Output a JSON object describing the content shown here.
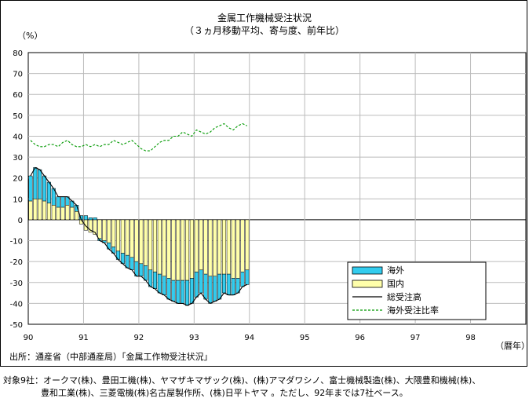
{
  "title": "金属工作機械受注状況",
  "subtitle": "（３ヵ月移動平均、寄与度、前年比）",
  "y_unit": "（%）",
  "x_unit": "（暦年）",
  "source": "出所：通産省（中部通産局）「金属工作物受注状況」",
  "note_line1": "対象9社：オークマ(株)、豊田工機(株)、ヤマザキマザック(株)、(株)アマダワシノ、富士機械製造(株)、大隈豊和機械(株)、",
  "note_line2": "豊和工業(株)、三菱電機(株)名古屋製作所、(株)日平トヤマ 。ただし、92年までは7社ベース。",
  "colors": {
    "overseas": "#33CCEE",
    "domestic": "#FFFFAA",
    "total": "#000000",
    "ratio": "#009900"
  },
  "chart_data": {
    "type": "bar",
    "stacked": true,
    "title": "金属工作機械受注状況",
    "subtitle": "（３ヵ月移動平均、寄与度、前年比）",
    "ylabel": "（%）",
    "xlabel": "（暦年）",
    "ylim": [
      -50,
      80
    ],
    "yticks": [
      -50,
      -40,
      -30,
      -20,
      -10,
      0,
      10,
      20,
      30,
      40,
      50,
      60,
      70,
      80
    ],
    "x_tick_labels": [
      "90",
      "91",
      "92",
      "93",
      "94",
      "95",
      "96",
      "97",
      "98"
    ],
    "x_start": "1990-01",
    "period": "monthly",
    "grid": true,
    "legend_position": "lower-right",
    "series": [
      {
        "name": "海外",
        "type": "bar",
        "values": [
          12,
          15,
          14,
          12,
          10,
          8,
          5,
          5,
          4,
          3,
          3,
          2,
          2,
          1,
          1,
          -1,
          -1,
          -3,
          -3,
          -4,
          -5,
          -6,
          -6,
          -7,
          -6,
          -7,
          -8,
          -8,
          -9,
          -9,
          -10,
          -10,
          -11,
          -11,
          -12,
          -12,
          -12,
          -11,
          -12,
          -13,
          -12,
          -12,
          -9,
          -10,
          -8,
          -7,
          -7,
          -7,
          null,
          null,
          null,
          null,
          null,
          null,
          null,
          null,
          null,
          null,
          null,
          null,
          null,
          null,
          null,
          null,
          null,
          null,
          null,
          null,
          null,
          null,
          null,
          null,
          null,
          null,
          null,
          null,
          null,
          null,
          null,
          null,
          null,
          null,
          null,
          null,
          null,
          null,
          null,
          null,
          null,
          null,
          null,
          null,
          null,
          null,
          null,
          null,
          null,
          null,
          null,
          null,
          null,
          null,
          null,
          null,
          null,
          null,
          null,
          null,
          null,
          null,
          null,
          null,
          null,
          null,
          null,
          null,
          null,
          null,
          null,
          null,
          null,
          null,
          null,
          null,
          null,
          null,
          null,
          null,
          null,
          null,
          null,
          null,
          null,
          null,
          null,
          null,
          null,
          null,
          null,
          null,
          null,
          null,
          null,
          null,
          null,
          null,
          null,
          null,
          null,
          null,
          null,
          null,
          null,
          null,
          null,
          null,
          null,
          null,
          null,
          null,
          null,
          null,
          null,
          null,
          null,
          null,
          null,
          null,
          null,
          null,
          null,
          null,
          null,
          null,
          null,
          null,
          null,
          null,
          null,
          null,
          null,
          null,
          null,
          null
        ]
      },
      {
        "name": "国内",
        "type": "bar",
        "values": [
          9,
          10,
          10,
          9,
          8,
          7,
          6,
          6,
          7,
          6,
          4,
          -2,
          -5,
          -6,
          -7,
          -9,
          -10,
          -11,
          -13,
          -15,
          -16,
          -17,
          -18,
          -20,
          -21,
          -22,
          -24,
          -25,
          -26,
          -27,
          -28,
          -29,
          -29,
          -29,
          -29,
          -28,
          -25,
          -24,
          -26,
          -27,
          -27,
          -26,
          -26,
          -26,
          -28,
          -28,
          -25,
          -24,
          null,
          null,
          null,
          null,
          null,
          null,
          null,
          null,
          null,
          null,
          null,
          null,
          null,
          null,
          null,
          null,
          null,
          null,
          null,
          null,
          null,
          null,
          null,
          null,
          null,
          null,
          null,
          null,
          null,
          null,
          null,
          null,
          null,
          null,
          null,
          null,
          null,
          null,
          null,
          null,
          null,
          null,
          null,
          null,
          null,
          null,
          null,
          null,
          null,
          null,
          null,
          null,
          null,
          null,
          null,
          null,
          null,
          null,
          null,
          null,
          null,
          null,
          null,
          null,
          null,
          null,
          null,
          null,
          null,
          null,
          null,
          null,
          null,
          null,
          null,
          null,
          null,
          null,
          null,
          null,
          null,
          null,
          null,
          null,
          null,
          null,
          null,
          null,
          null,
          null,
          null,
          null,
          null,
          null,
          null,
          null,
          null,
          null,
          null,
          null,
          null,
          null,
          null,
          null,
          null,
          null,
          null,
          null,
          null,
          null,
          null,
          null,
          null,
          null,
          null,
          null,
          null,
          null,
          null,
          null,
          null,
          null,
          null,
          null,
          null,
          null,
          null,
          null,
          null,
          null,
          null,
          null,
          null,
          null,
          null,
          null
        ]
      },
      {
        "name": "総受注高",
        "type": "line",
        "values": [
          21,
          25,
          24,
          21,
          18,
          15,
          11,
          11,
          11,
          9,
          7,
          0,
          -3,
          -5,
          -6,
          -10,
          -11,
          -14,
          -16,
          -19,
          -21,
          -23,
          -24,
          -27,
          -27,
          -29,
          -32,
          -33,
          -35,
          -36,
          -38,
          -39,
          -40,
          -40,
          -41,
          -40,
          -37,
          -35,
          -38,
          -40,
          -39,
          -38,
          -35,
          -36,
          -36,
          -35,
          -32,
          -31,
          null,
          null,
          null,
          null,
          null,
          null,
          null,
          null,
          null,
          null,
          null,
          null,
          null,
          null,
          null,
          null,
          null,
          null,
          null,
          null,
          null,
          null,
          null,
          null,
          null,
          null,
          null,
          null,
          null,
          null,
          null,
          null,
          null,
          null,
          null,
          null,
          null,
          null,
          null,
          null,
          null,
          null,
          null,
          null,
          null,
          null,
          null,
          null,
          null,
          null,
          null,
          null,
          null,
          null,
          null,
          null,
          null,
          null,
          null,
          null,
          null,
          null,
          null,
          null,
          null,
          null,
          null,
          null,
          null,
          null,
          null,
          null,
          null,
          null,
          null,
          null,
          null,
          null,
          null,
          null,
          null,
          null,
          null,
          null,
          null,
          null,
          null,
          null,
          null,
          null,
          null,
          null,
          null,
          null,
          null,
          null,
          null,
          null,
          null,
          null,
          null,
          null,
          null,
          null,
          null,
          null,
          null,
          null,
          null,
          null,
          null,
          null,
          null,
          null,
          null,
          null,
          null,
          null,
          null,
          null,
          null,
          null,
          null,
          null,
          null,
          null,
          null,
          null,
          null,
          null,
          null,
          null,
          null,
          null,
          null,
          null
        ]
      },
      {
        "name": "海外受注比率",
        "type": "line",
        "values": [
          38,
          36,
          35,
          35,
          36,
          36,
          35,
          37,
          38,
          36,
          35,
          35,
          36,
          35,
          36,
          35,
          36,
          36,
          38,
          37,
          36,
          37,
          38,
          36,
          34,
          33,
          33,
          35,
          37,
          38,
          38,
          40,
          40,
          42,
          41,
          40,
          43,
          42,
          41,
          42,
          44,
          45,
          46,
          44,
          43,
          45,
          46,
          45,
          null,
          null,
          null,
          null,
          null,
          null,
          null,
          null,
          null,
          null,
          null,
          null,
          null,
          null,
          null,
          null,
          null,
          null,
          null,
          null,
          null,
          null,
          null,
          null,
          null,
          null,
          null,
          null,
          null,
          null,
          null,
          null,
          null,
          null,
          null,
          null,
          null,
          null,
          null,
          null,
          null,
          null,
          null,
          null,
          null,
          null,
          null,
          null,
          null,
          null,
          null,
          null,
          null,
          null,
          null,
          null,
          null,
          null,
          null,
          null,
          null,
          null,
          null,
          null,
          null,
          null,
          null,
          null,
          null,
          null,
          null,
          null,
          null,
          null,
          null,
          null,
          null,
          null,
          null,
          null,
          null,
          null,
          null,
          null,
          null,
          null,
          null,
          null,
          null,
          null,
          null,
          null,
          null,
          null,
          null,
          null,
          null,
          null,
          null,
          null,
          null,
          null,
          null,
          null,
          null,
          null,
          null,
          null,
          null,
          null,
          null,
          null,
          null,
          null,
          null,
          null,
          null,
          null,
          null,
          null,
          null,
          null,
          null,
          null,
          null,
          null,
          null,
          null,
          null,
          null,
          null,
          null,
          null,
          null,
          null,
          null
        ]
      }
    ]
  }
}
